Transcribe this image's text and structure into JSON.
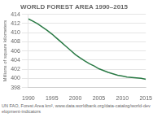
{
  "chart_data": {
    "type": "line",
    "title": "WORLD FOREST AREA 1990–2015",
    "ylabel": "Millions of square kilometers",
    "caption": "UN FAO, Forest Area km², www.data.worldbank.org/data-catalog/world-development-indicators",
    "x": [
      1990,
      1991,
      1992,
      1993,
      1994,
      1995,
      1996,
      1997,
      1998,
      1999,
      2000,
      2001,
      2002,
      2003,
      2004,
      2005,
      2006,
      2007,
      2008,
      2009,
      2010,
      2011,
      2012,
      2013,
      2014,
      2015
    ],
    "values": [
      413.0,
      412.5,
      411.9,
      411.2,
      410.5,
      409.7,
      408.8,
      407.9,
      407.0,
      406.1,
      405.2,
      404.5,
      403.8,
      403.2,
      402.7,
      402.1,
      401.7,
      401.3,
      401.0,
      400.7,
      400.5,
      400.3,
      400.2,
      400.1,
      400.0,
      399.8
    ],
    "color": "#2a7a45",
    "xlim": [
      1990,
      2015
    ],
    "xticks": [
      1990,
      1995,
      2000,
      2005,
      2010,
      2015
    ],
    "ylim": [
      398,
      414
    ],
    "yticks": [
      398,
      400,
      402,
      404,
      406,
      408,
      410,
      412,
      414
    ],
    "grid": "y"
  }
}
